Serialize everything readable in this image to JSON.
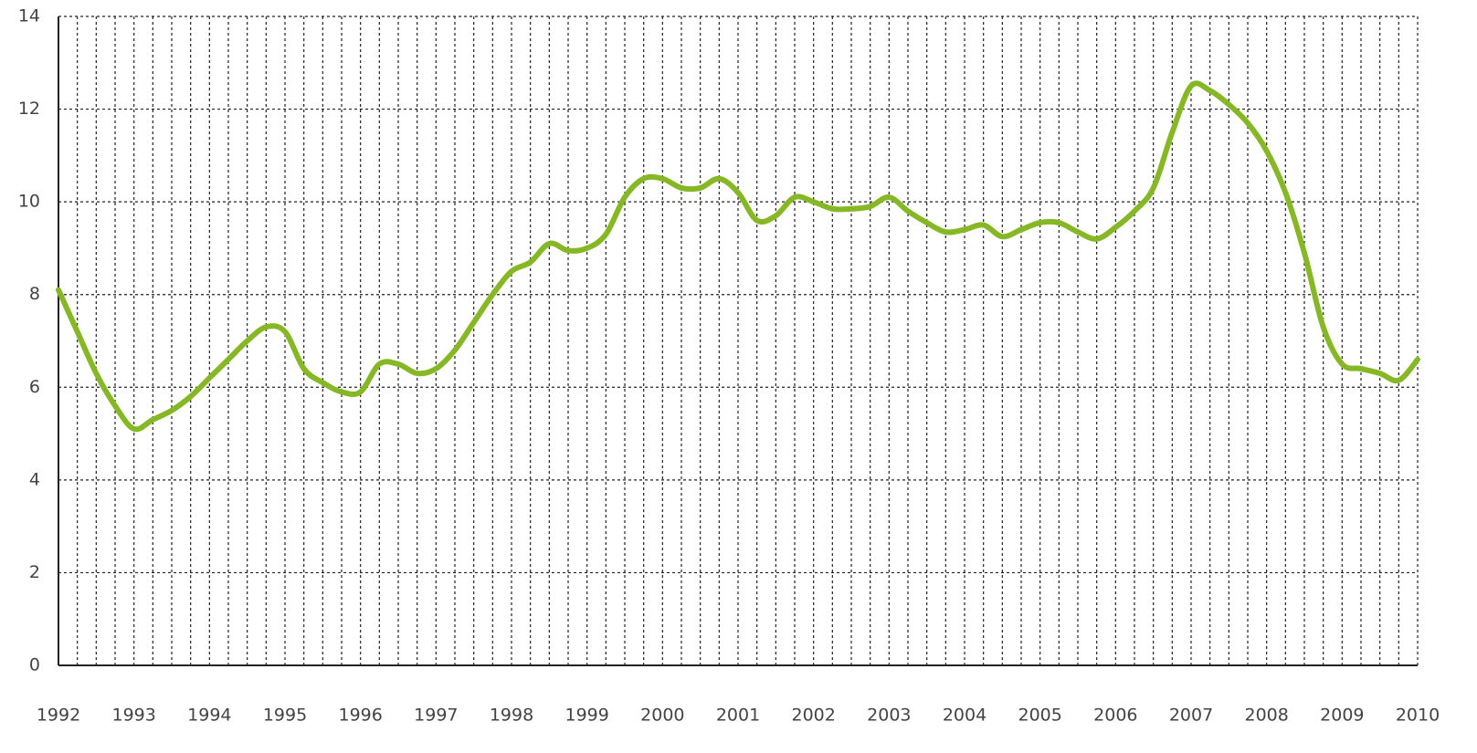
{
  "chart_data": {
    "type": "line",
    "x": [
      1992,
      1992.25,
      1992.5,
      1992.75,
      1993,
      1993.25,
      1993.5,
      1993.75,
      1994,
      1994.25,
      1994.5,
      1994.75,
      1995,
      1995.25,
      1995.5,
      1995.75,
      1996,
      1996.25,
      1996.5,
      1996.75,
      1997,
      1997.25,
      1997.5,
      1997.75,
      1998,
      1998.25,
      1998.5,
      1998.75,
      1999,
      1999.25,
      1999.5,
      1999.75,
      2000,
      2000.25,
      2000.5,
      2000.75,
      2001,
      2001.25,
      2001.5,
      2001.75,
      2002,
      2002.25,
      2002.5,
      2002.75,
      2003,
      2003.25,
      2003.5,
      2003.75,
      2004,
      2004.25,
      2004.5,
      2004.75,
      2005,
      2005.25,
      2005.5,
      2005.75,
      2006,
      2006.25,
      2006.5,
      2006.75,
      2007,
      2007.25,
      2007.5,
      2007.75,
      2008,
      2008.25,
      2008.5,
      2008.75,
      2009,
      2009.25,
      2009.5,
      2009.75,
      2010
    ],
    "series": [
      {
        "color": "#86b826",
        "values": [
          8.1,
          7.2,
          6.3,
          5.6,
          5.1,
          5.3,
          5.5,
          5.8,
          6.2,
          6.6,
          7.0,
          7.3,
          7.2,
          6.4,
          6.1,
          5.9,
          5.9,
          6.5,
          6.5,
          6.3,
          6.4,
          6.8,
          7.4,
          8.0,
          8.5,
          8.7,
          9.1,
          8.95,
          9.0,
          9.3,
          10.1,
          10.5,
          10.5,
          10.3,
          10.3,
          10.5,
          10.2,
          9.6,
          9.7,
          10.1,
          10.0,
          9.85,
          9.85,
          9.9,
          10.1,
          9.8,
          9.55,
          9.35,
          9.4,
          9.5,
          9.25,
          9.4,
          9.55,
          9.55,
          9.35,
          9.2,
          9.45,
          9.8,
          10.3,
          11.5,
          12.5,
          12.4,
          12.1,
          11.7,
          11.1,
          10.2,
          8.9,
          7.3,
          6.5,
          6.4,
          6.3,
          6.15,
          6.6
        ]
      }
    ],
    "xlim": [
      1992,
      2010
    ],
    "xticks": [
      1992,
      1993,
      1994,
      1995,
      1996,
      1997,
      1998,
      1999,
      2000,
      2001,
      2002,
      2003,
      2004,
      2005,
      2006,
      2007,
      2008,
      2009,
      2010
    ],
    "ylim": [
      0,
      14
    ],
    "yticks": [
      0,
      2,
      4,
      6,
      8,
      10,
      12,
      14
    ],
    "grid": true
  }
}
